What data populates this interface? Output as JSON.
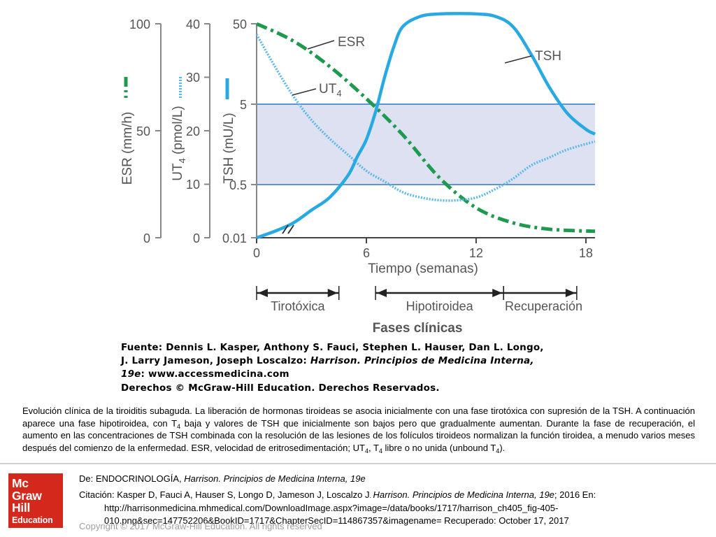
{
  "chart_data": {
    "type": "line",
    "xlabel": "Tiempo (semanas)",
    "x_ticks": [
      "0",
      "6",
      "12",
      "18"
    ],
    "xlim": [
      0,
      18.5
    ],
    "axes": [
      {
        "label": "ESR (mm/h)",
        "ticks": [
          "0",
          "50",
          "100"
        ]
      },
      {
        "label_main": "UT",
        "label_sub": "4",
        "label_rest": " (pmol/L)",
        "ticks": [
          "0",
          "10",
          "20",
          "30",
          "40"
        ]
      },
      {
        "label": "TSH (mU/L)",
        "ticks": [
          "0.01",
          "0.5",
          "5",
          "50"
        ],
        "scale": "log"
      }
    ],
    "normal_range_tsh": [
      0.5,
      5
    ],
    "series": [
      {
        "name": "ESR",
        "axis": "ESR (mm/h)",
        "style": "dash-dot",
        "color": "#1e9a4e",
        "x": [
          0,
          2,
          4,
          6,
          8,
          10,
          12,
          14,
          16,
          18.5
        ],
        "y": [
          100,
          92,
          80,
          65,
          48,
          28,
          14,
          7,
          4,
          3
        ]
      },
      {
        "name_main": "UT",
        "name_sub": "4",
        "axis": "UT4 (pmol/L)",
        "style": "dotted",
        "color": "#5ab8e6",
        "x": [
          0,
          1,
          2,
          3,
          4,
          5,
          6,
          7,
          8,
          9,
          10,
          11,
          12,
          13,
          14,
          15,
          16,
          17,
          18.5
        ],
        "y": [
          38,
          32,
          26.5,
          22,
          18.5,
          15.5,
          12.5,
          10.5,
          8.5,
          7.5,
          7,
          7,
          7.5,
          9,
          11,
          13.5,
          15,
          16.5,
          18
        ]
      },
      {
        "name": "TSH",
        "axis": "TSH (mU/L)",
        "style": "solid",
        "color": "#29a9e1",
        "x": [
          0,
          1,
          2,
          3,
          4,
          5,
          5.5,
          6,
          6.5,
          7,
          7.5,
          8,
          9,
          10,
          11,
          12,
          13,
          14,
          15,
          16,
          17,
          18,
          18.5
        ],
        "y": [
          0.01,
          0.013,
          0.018,
          0.03,
          0.05,
          0.12,
          0.25,
          0.5,
          1.5,
          6,
          20,
          45,
          68,
          74,
          75,
          74,
          68,
          45,
          15,
          4,
          1.4,
          0.75,
          0.62
        ]
      }
    ],
    "phases": {
      "title": "Fases clínicas",
      "items": [
        {
          "label": "Tirotóxica",
          "start": 0,
          "end": 4.5
        },
        {
          "label": "Hipotiroidea",
          "start": 6.5,
          "end": 13.5
        },
        {
          "label": "Recuperación",
          "start": 13.5,
          "end": 17.5
        }
      ]
    }
  },
  "source": {
    "line1": "Fuente: Dennis L. Kasper, Anthony S. Fauci, Stephen L. Hauser, Dan L. Longo,",
    "line2_a": "J. Larry Jameson, Joseph Loscalzo: ",
    "line2_b": "Harrison. Principios de Medicina Interna,",
    "line3_a": "19e",
    "line3_b": ": www.accessmedicina.com",
    "line4": "Derechos © McGraw-Hill Education. Derechos Reservados."
  },
  "caption": {
    "p1": "Evolución clínica de la tiroiditis subaguda. La liberación de hormonas tiroideas se asocia inicialmente con una fase tirotóxica con supresión de la TSH. A continuación aparece una fase hipotiroidea, con T",
    "s1": "4",
    "p2": " baja y valores de TSH que inicialmente son bajos pero que gradualmente aumentan. Durante la fase de recuperación, el aumento en las concentraciones de TSH combinada con la resolución de las lesiones de los folículos tiroideos normalizan la función tiroidea, a menudo varios meses después del comienzo de la enfermedad. ESR, velocidad de eritrosedimentación; UT",
    "s2": "4",
    "p3": ", T",
    "s3": "4",
    "p4": " libre o no unida (unbound T",
    "s4": "4",
    "p5": ")."
  },
  "logo": {
    "line1": "Mc",
    "line2": "Graw",
    "line3": "Hill",
    "line4": "Education"
  },
  "citation": {
    "de_prefix": "De: ",
    "de_book": "ENDOCRINOLOGÍA, ",
    "de_title": "Harrison. Principios de Medicina Interna, 19e",
    "cit_prefix": "Citación: Kasper D, Fauci A, Hauser S, Longo D, Jameson J, Loscalzo J",
    "cit_dot": ". ",
    "cit_title": "Harrison. Principios de Medicina Interna, 19e",
    "cit_rest": "; 2016 En:",
    "url1": "http://harrisonmedicina.mhmedical.com/DownloadImage.aspx?image=/data/books/1717/harrison_ch405_fig-405-",
    "url2": "010.png&sec=147752206&BookID=1717&ChapterSecID=114867357&imagename= Recuperado: October 17, 2017"
  },
  "copyright": "Copyright © 2017 McGraw-Hill Education. All rights reserved",
  "colors": {
    "esr": "#1e9a4e",
    "ut4": "#5ab8e6",
    "tsh": "#29a9e1",
    "band": "#dde1f2",
    "band_line": "#4f86c6",
    "logo": "#d4281c"
  }
}
